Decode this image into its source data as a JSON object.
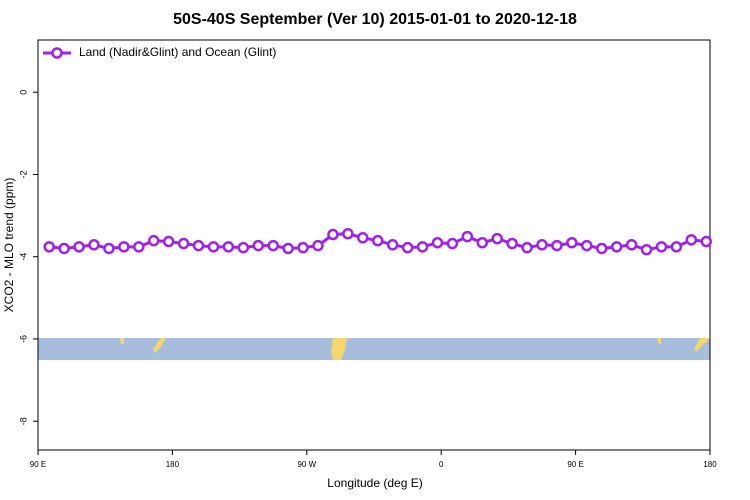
{
  "chart_data": {
    "type": "line",
    "title": "50S-40S September (Ver 10)   2015-01-01 to 2020-12-18",
    "x_label": "Longitude (deg E)",
    "y_label": "XCO2 - MLO trend (ppm)",
    "x": [
      97.5,
      107.5,
      117.5,
      127.5,
      137.5,
      147.5,
      157.5,
      167.5,
      177.5,
      187.5,
      197.5,
      207.5,
      217.5,
      227.5,
      237.5,
      247.5,
      257.5,
      267.5,
      277.5,
      287.5,
      297.5,
      307.5,
      317.5,
      327.5,
      337.5,
      347.5,
      357.5,
      367.5,
      377.5,
      387.5,
      397.5,
      407.5,
      417.5,
      427.5,
      437.5,
      447.5,
      457.5,
      467.5,
      477.5,
      487.5,
      497.5,
      507.5,
      517.5,
      527.5,
      537.5
    ],
    "series": [
      {
        "name": "Land (Nadir&Glint) and Ocean (Glint)",
        "color": "#a020f0",
        "values": [
          -3.76,
          -3.8,
          -3.76,
          -3.71,
          -3.8,
          -3.76,
          -3.76,
          -3.61,
          -3.63,
          -3.68,
          -3.73,
          -3.76,
          -3.76,
          -3.78,
          -3.73,
          -3.73,
          -3.8,
          -3.78,
          -3.73,
          -3.46,
          -3.44,
          -3.54,
          -3.61,
          -3.71,
          -3.78,
          -3.76,
          -3.66,
          -3.68,
          -3.51,
          -3.66,
          -3.56,
          -3.68,
          -3.78,
          -3.71,
          -3.73,
          -3.66,
          -3.73,
          -3.8,
          -3.76,
          -3.71,
          -3.83,
          -3.76,
          -3.76,
          -3.59,
          -3.63
        ]
      }
    ],
    "xlim": [
      90,
      540
    ],
    "xticks": [
      {
        "value": 90,
        "label": "90 E"
      },
      {
        "value": 180,
        "label": "180"
      },
      {
        "value": 270,
        "label": "90 W"
      },
      {
        "value": 360,
        "label": "0"
      },
      {
        "value": 450,
        "label": "90 E"
      },
      {
        "value": 540,
        "label": "180"
      }
    ],
    "ylim": [
      -8.7,
      1.27
    ],
    "yticks": [
      0,
      -2,
      -4,
      -6,
      -8
    ],
    "legend": "topleft"
  }
}
